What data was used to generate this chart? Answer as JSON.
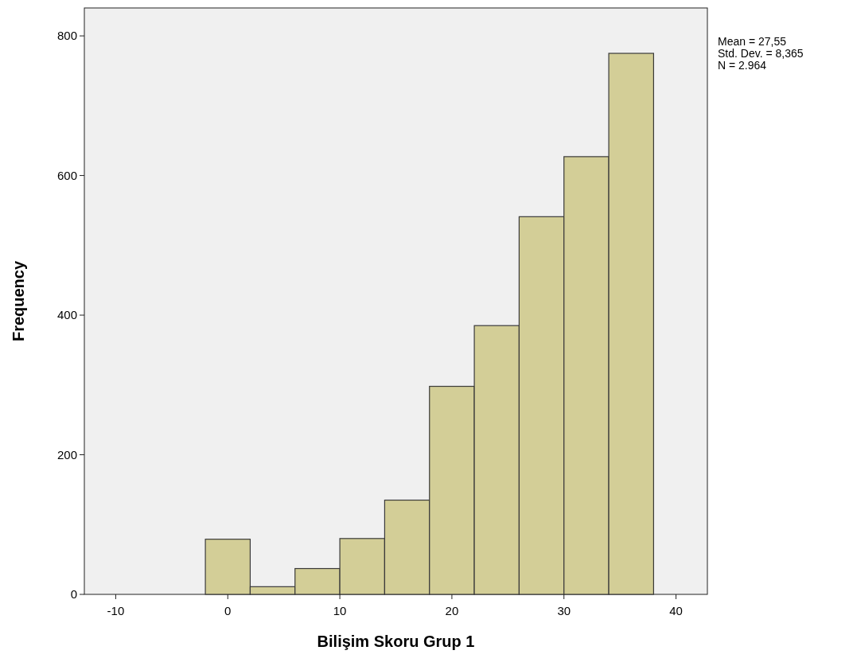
{
  "chart_data": {
    "type": "histogram",
    "xlabel": "Bilişim Skoru Grup 1",
    "ylabel": "Frequency",
    "bins": [
      -2,
      2,
      6,
      10,
      14,
      18,
      22,
      26,
      30,
      34,
      38
    ],
    "values": [
      79,
      11,
      37,
      80,
      135,
      298,
      385,
      541,
      627,
      775
    ],
    "color": "#d3ce97",
    "xlim": [
      -12.8,
      42.8
    ],
    "xticks": [
      -10,
      0,
      10,
      20,
      30,
      40
    ],
    "ylim": [
      0,
      840
    ],
    "yticks": [
      0,
      200,
      400,
      600,
      800
    ],
    "grid": false,
    "annotations": [
      "Mean = 27,55",
      "Std. Dev. = 8,365",
      "N = 2.964"
    ]
  }
}
